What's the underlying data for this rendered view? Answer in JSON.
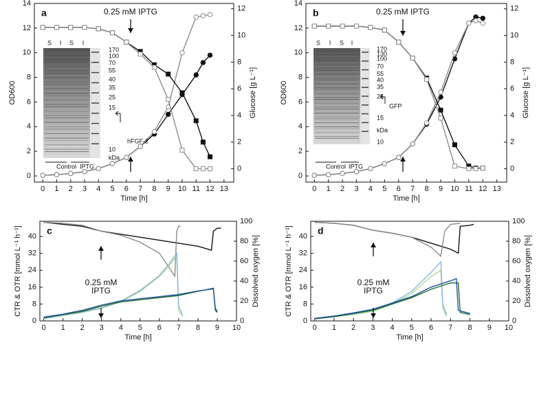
{
  "chart_data": [
    {
      "type": "line",
      "panel_label": "a",
      "annotation": [
        "0.25 mM IPTG"
      ],
      "xlabel": "Time [h]",
      "ylabel": "OD600",
      "y2label": "Glucose [g L⁻¹]",
      "xlim": [
        -0.6,
        13.7
      ],
      "xticks": [
        0,
        1,
        2,
        3,
        4,
        5,
        6,
        7,
        8,
        9,
        10,
        11,
        12,
        13
      ],
      "ylim": [
        -0.5,
        14
      ],
      "yticks": [
        0,
        2,
        4,
        6,
        8,
        10,
        12,
        14
      ],
      "y2lim": [
        -1,
        12.4
      ],
      "y2ticks": [
        0,
        2,
        4,
        6,
        8,
        10,
        12
      ],
      "gel_labels": [
        "S",
        "I",
        "S",
        "I",
        "170",
        "100",
        "70",
        "55",
        "40",
        "35",
        "25",
        "15",
        "10",
        "kDa",
        "hFGF-2",
        "Control",
        "IPTG"
      ],
      "series": [
        {
          "color": "#111111",
          "marker": "circle-filled",
          "axis": "y",
          "x": [
            0,
            1,
            2,
            3,
            4,
            5,
            6,
            7,
            8,
            9,
            10,
            11,
            11.5,
            12
          ],
          "values": [
            0.05,
            0.1,
            0.2,
            0.35,
            0.6,
            1.0,
            1.5,
            2.4,
            3.4,
            5.0,
            6.6,
            8.2,
            9.2,
            9.8
          ]
        },
        {
          "color": "#8c8c8c",
          "marker": "circle-open",
          "axis": "y",
          "x": [
            0,
            1,
            2,
            3,
            4,
            5,
            6,
            7,
            8,
            9,
            10,
            11,
            11.5,
            12
          ],
          "values": [
            0.05,
            0.1,
            0.2,
            0.35,
            0.6,
            1.0,
            1.5,
            2.4,
            3.6,
            5.6,
            10.0,
            12.9,
            13.0,
            13.1
          ]
        },
        {
          "color": "#111111",
          "marker": "square-filled",
          "axis": "y2",
          "x": [
            0,
            1,
            2,
            3,
            4,
            5,
            6,
            7,
            8,
            9,
            10,
            11,
            11.5,
            12
          ],
          "values": [
            10.6,
            10.6,
            10.6,
            10.6,
            10.5,
            10.2,
            9.5,
            8.8,
            7.8,
            7.1,
            5.7,
            3.6,
            2.0,
            0.9
          ]
        },
        {
          "color": "#8c8c8c",
          "marker": "square-open",
          "axis": "y2",
          "x": [
            0,
            1,
            2,
            3,
            4,
            5,
            6,
            7,
            8,
            9,
            10,
            11,
            11.5,
            12
          ],
          "values": [
            10.6,
            10.6,
            10.6,
            10.6,
            10.5,
            10.2,
            9.5,
            8.6,
            7.6,
            5.2,
            1.4,
            0.0,
            0.0,
            0.0
          ]
        }
      ]
    },
    {
      "type": "line",
      "panel_label": "b",
      "annotation": [
        "0.25 mM IPTG"
      ],
      "xlabel": "Time [h]",
      "ylabel": "OD600",
      "y2label": "Glucose [g L⁻¹]",
      "xlim": [
        -0.6,
        13.7
      ],
      "xticks": [
        0,
        1,
        2,
        3,
        4,
        5,
        6,
        7,
        8,
        9,
        10,
        11,
        12,
        13
      ],
      "ylim": [
        -0.5,
        14
      ],
      "yticks": [
        0,
        2,
        4,
        6,
        8,
        10,
        12,
        14
      ],
      "y2lim": [
        -1,
        12.4
      ],
      "y2ticks": [
        0,
        2,
        4,
        6,
        8,
        10,
        12
      ],
      "gel_labels": [
        "S",
        "I",
        "S",
        "I",
        "170",
        "130",
        "100",
        "70",
        "55",
        "40",
        "35",
        "25",
        "GFP",
        "15",
        "kDa",
        "10",
        "Control",
        "IPTG"
      ],
      "series": [
        {
          "color": "#111111",
          "marker": "circle-filled",
          "axis": "y",
          "x": [
            0,
            1,
            2,
            3,
            4,
            5,
            6,
            7,
            8,
            9,
            10,
            11,
            11.5,
            12
          ],
          "values": [
            0.05,
            0.1,
            0.2,
            0.35,
            0.6,
            1.0,
            1.5,
            2.6,
            4.2,
            6.4,
            9.5,
            12.4,
            12.9,
            12.8
          ]
        },
        {
          "color": "#8c8c8c",
          "marker": "circle-open",
          "axis": "y",
          "x": [
            0,
            1,
            2,
            3,
            4,
            5,
            6,
            7,
            8,
            9,
            10,
            11,
            11.5,
            12
          ],
          "values": [
            0.05,
            0.1,
            0.2,
            0.35,
            0.6,
            1.0,
            1.5,
            2.6,
            4.3,
            6.8,
            10.0,
            12.4,
            12.6,
            12.4
          ]
        },
        {
          "color": "#111111",
          "marker": "square-filled",
          "axis": "y2",
          "x": [
            0,
            1,
            2,
            3,
            4,
            5,
            6,
            7,
            8,
            9,
            10,
            11,
            11.5,
            12
          ],
          "values": [
            10.7,
            10.7,
            10.7,
            10.7,
            10.6,
            10.4,
            9.5,
            8.3,
            6.8,
            4.4,
            1.8,
            0.2,
            0.05,
            0.05
          ]
        },
        {
          "color": "#8c8c8c",
          "marker": "square-open",
          "axis": "y2",
          "x": [
            0,
            1,
            2,
            3,
            4,
            5,
            6,
            7,
            8,
            9,
            10,
            11,
            11.5,
            12
          ],
          "values": [
            10.7,
            10.7,
            10.7,
            10.7,
            10.6,
            10.4,
            9.5,
            8.3,
            6.7,
            3.8,
            0.2,
            0.0,
            0.0,
            0.05
          ]
        }
      ]
    },
    {
      "type": "line",
      "panel_label": "c",
      "annotation": [
        "0.25 mM",
        "IPTG"
      ],
      "xlabel": "Time [h]",
      "ylabel": "CTR & OTR [mmol L⁻¹ h⁻¹]",
      "y2label": "Dissolved oxygen [%]",
      "xlim": [
        -0.2,
        10
      ],
      "xticks": [
        0,
        1,
        2,
        3,
        4,
        5,
        6,
        7,
        8,
        9,
        10
      ],
      "ylim": [
        0,
        47.2
      ],
      "yticks": [
        0,
        8,
        16,
        24,
        32,
        40
      ],
      "y2lim": [
        0,
        100
      ],
      "y2ticks": [
        0,
        20,
        40,
        60,
        80,
        100
      ],
      "series": [
        {
          "color": "#111111",
          "marker": "none",
          "axis": "y2",
          "x": [
            0,
            1,
            2,
            3,
            4,
            5,
            6,
            7,
            8,
            8.7,
            8.8,
            9,
            9.2
          ],
          "values": [
            99,
            97,
            95,
            90,
            87,
            84,
            81,
            78,
            75,
            71,
            90,
            93,
            93
          ]
        },
        {
          "color": "#8c8c8c",
          "marker": "none",
          "axis": "y2",
          "x": [
            0,
            1,
            2,
            3,
            4,
            5,
            6,
            6.8,
            6.9,
            7.0,
            7.1
          ],
          "values": [
            99,
            98,
            96,
            90,
            86,
            79,
            68,
            45,
            90,
            95,
            95
          ]
        },
        {
          "color": "#a8dc90",
          "marker": "none",
          "axis": "y",
          "x": [
            0,
            1,
            2,
            3,
            4,
            5,
            6,
            6.5,
            6.9,
            7.0,
            7.2
          ],
          "values": [
            1,
            2.5,
            4,
            6,
            9,
            14,
            21,
            26,
            31,
            5,
            2
          ]
        },
        {
          "color": "#8fb4dc",
          "marker": "none",
          "axis": "y",
          "x": [
            0,
            1,
            2,
            3,
            4,
            5,
            6,
            6.5,
            6.9,
            7.0,
            7.2
          ],
          "values": [
            1.2,
            2.7,
            4.2,
            6.2,
            9.3,
            14.5,
            21.5,
            27,
            32,
            7,
            3
          ]
        },
        {
          "color": "#1f6e2e",
          "marker": "none",
          "axis": "y",
          "x": [
            0,
            1,
            2,
            3,
            4,
            5,
            6,
            7,
            8,
            8.8,
            8.9,
            9
          ],
          "values": [
            1.5,
            3,
            4.5,
            7,
            9,
            10,
            11,
            12,
            14,
            15.5,
            5,
            4
          ]
        },
        {
          "color": "#1d4f9e",
          "marker": "none",
          "axis": "y",
          "x": [
            0,
            1,
            2,
            3,
            4,
            5,
            6,
            7,
            8,
            8.8,
            8.9,
            9
          ],
          "values": [
            1.8,
            3.2,
            5,
            7.5,
            9.5,
            10.5,
            11.5,
            12.5,
            14.2,
            15.2,
            6,
            4.5
          ]
        }
      ]
    },
    {
      "type": "line",
      "panel_label": "d",
      "annotation": [
        "0.25 mM",
        "IPTG"
      ],
      "xlabel": "Time [h]",
      "ylabel": "CTR & OTR [mmol L⁻¹ h⁻¹]",
      "y2label": "Dissolved oxygen [%]",
      "xlim": [
        -0.2,
        10
      ],
      "xticks": [
        0,
        1,
        2,
        3,
        4,
        5,
        6,
        7,
        8,
        9,
        10
      ],
      "ylim": [
        0,
        47.2
      ],
      "yticks": [
        0,
        8,
        16,
        24,
        32,
        40
      ],
      "y2lim": [
        0,
        100
      ],
      "y2ticks": [
        0,
        20,
        40,
        60,
        80,
        100
      ],
      "series": [
        {
          "color": "#111111",
          "marker": "none",
          "axis": "y2",
          "x": [
            0,
            1,
            2,
            3,
            4,
            5,
            6,
            7,
            7.4,
            7.5,
            8,
            8.2
          ],
          "values": [
            99,
            98,
            96,
            91,
            88,
            84,
            78,
            72,
            68,
            95,
            96,
            97
          ]
        },
        {
          "color": "#8c8c8c",
          "marker": "none",
          "axis": "y2",
          "x": [
            0,
            1,
            2,
            3,
            4,
            5,
            6,
            6.5,
            6.7,
            7,
            7.5
          ],
          "values": [
            99,
            98,
            96,
            91,
            88,
            84,
            74,
            65,
            90,
            97,
            98
          ]
        },
        {
          "color": "#a8dc90",
          "marker": "none",
          "axis": "y",
          "x": [
            0,
            1,
            2,
            3,
            4,
            5,
            6,
            6.5,
            6.6,
            6.8
          ],
          "values": [
            1,
            2,
            3,
            4.5,
            8,
            13,
            21,
            24,
            6,
            2
          ]
        },
        {
          "color": "#8fb4dc",
          "marker": "none",
          "axis": "y",
          "x": [
            0,
            1,
            2,
            3,
            4,
            5,
            6,
            6.5,
            6.6,
            6.8
          ],
          "values": [
            1.2,
            2.2,
            3.3,
            5,
            8.5,
            14,
            23,
            28,
            8,
            3
          ]
        },
        {
          "color": "#1f6e2e",
          "marker": "none",
          "axis": "y",
          "x": [
            0,
            1,
            2,
            3,
            4,
            5,
            6,
            7,
            7.4,
            7.5,
            8
          ],
          "values": [
            1,
            2,
            3.5,
            5,
            8,
            11,
            15,
            18,
            18,
            4,
            3
          ]
        },
        {
          "color": "#1d4f9e",
          "marker": "none",
          "axis": "y",
          "x": [
            0,
            1,
            2,
            3,
            4,
            5,
            6,
            7,
            7.3,
            7.4,
            8
          ],
          "values": [
            1.2,
            2.3,
            3.8,
            5.5,
            8.5,
            11.5,
            16,
            19,
            20,
            5,
            3.5
          ]
        }
      ]
    }
  ]
}
